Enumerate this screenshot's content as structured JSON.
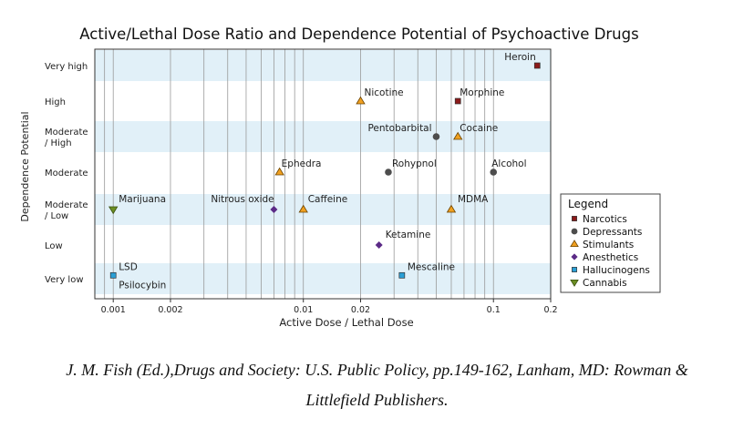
{
  "chart_data": {
    "type": "scatter",
    "title": "Active/Lethal Dose Ratio and Dependence Potential of Psychoactive Drugs",
    "xlabel": "Active Dose / Lethal Dose",
    "ylabel": "Dependence Potential",
    "x_scale": "log",
    "xlim": [
      0.0008,
      0.2
    ],
    "x_ticks": [
      {
        "value": 0.001,
        "label": "0.001"
      },
      {
        "value": 0.002,
        "label": "0.002"
      },
      {
        "value": 0.01,
        "label": "0.01"
      },
      {
        "value": 0.02,
        "label": "0.02"
      },
      {
        "value": 0.1,
        "label": "0.1"
      },
      {
        "value": 0.2,
        "label": "0.2"
      }
    ],
    "y_categories": [
      "Very low",
      "Low",
      "Moderate / Low",
      "Moderate",
      "Moderate / High",
      "High",
      "Very high"
    ],
    "y_category_lines": [
      [
        "Very low"
      ],
      [
        "Low"
      ],
      [
        "Moderate",
        "/ Low"
      ],
      [
        "Moderate"
      ],
      [
        "Moderate",
        "/ High"
      ],
      [
        "High"
      ],
      [
        "Very high"
      ]
    ],
    "grid": true,
    "legend": {
      "title": "Legend",
      "position": "right",
      "entries": [
        {
          "name": "Narcotics",
          "marker": "square",
          "color": "#8b1a1a"
        },
        {
          "name": "Depressants",
          "marker": "circle",
          "color": "#4d4d4d"
        },
        {
          "name": "Stimulants",
          "marker": "triangle-up",
          "color": "#f0a020"
        },
        {
          "name": "Anesthetics",
          "marker": "diamond",
          "color": "#5b2a86"
        },
        {
          "name": "Hallucinogens",
          "marker": "square",
          "color": "#2a9fd6"
        },
        {
          "name": "Cannabis",
          "marker": "triangle-down",
          "color": "#6b8e23"
        }
      ]
    },
    "points": [
      {
        "label": "Heroin",
        "x": 0.17,
        "y": 6,
        "group": "Narcotics"
      },
      {
        "label": "Morphine",
        "x": 0.065,
        "y": 5,
        "group": "Narcotics"
      },
      {
        "label": "Nicotine",
        "x": 0.02,
        "y": 5,
        "group": "Stimulants"
      },
      {
        "label": "Pentobarbital",
        "x": 0.05,
        "y": 4,
        "group": "Depressants"
      },
      {
        "label": "Cocaine",
        "x": 0.065,
        "y": 4,
        "group": "Stimulants"
      },
      {
        "label": "Ephedra",
        "x": 0.0075,
        "y": 3,
        "group": "Stimulants"
      },
      {
        "label": "Rohypnol",
        "x": 0.028,
        "y": 3,
        "group": "Depressants"
      },
      {
        "label": "Alcohol",
        "x": 0.1,
        "y": 3,
        "group": "Depressants"
      },
      {
        "label": "Marijuana",
        "x": 0.001,
        "y": 2,
        "group": "Cannabis"
      },
      {
        "label": "Nitrous oxide",
        "x": 0.007,
        "y": 2,
        "group": "Anesthetics"
      },
      {
        "label": "Caffeine",
        "x": 0.01,
        "y": 2,
        "group": "Stimulants"
      },
      {
        "label": "MDMA",
        "x": 0.06,
        "y": 2,
        "group": "Stimulants"
      },
      {
        "label": "Ketamine",
        "x": 0.025,
        "y": 1,
        "group": "Anesthetics"
      },
      {
        "label": "LSD",
        "x": 0.001,
        "y": 0.1,
        "group": "Hallucinogens"
      },
      {
        "label": "Psilocybin",
        "x": 0.001,
        "y": 0.1,
        "group": "Hallucinogens"
      },
      {
        "label": "Mescaline",
        "x": 0.033,
        "y": 0.1,
        "group": "Hallucinogens"
      }
    ]
  },
  "caption": {
    "line1": "J. M. Fish (Ed.),Drugs and Society: U.S. Public Policy, pp.149-162, Lanham, MD: Rowman &",
    "line2": "Littlefield Publishers."
  }
}
